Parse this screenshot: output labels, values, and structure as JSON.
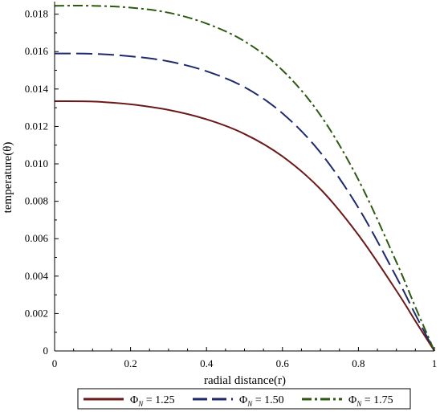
{
  "chart_data": {
    "type": "line",
    "title": "",
    "xlabel": "radial distance(r)",
    "ylabel": "temperature(θ)",
    "xlim": [
      0,
      1
    ],
    "ylim": [
      0,
      0.0185
    ],
    "x_ticks": [
      "0",
      "0.2",
      "0.4",
      "0.6",
      "0.8",
      "1"
    ],
    "y_ticks": [
      "0",
      "0.002",
      "0.004",
      "0.006",
      "0.008",
      "0.010",
      "0.012",
      "0.014",
      "0.016",
      "0.018"
    ],
    "grid": false,
    "legend_position": "bottom",
    "x": [
      0,
      0.1,
      0.2,
      0.3,
      0.4,
      0.5,
      0.6,
      0.7,
      0.8,
      0.9,
      0.95,
      1.0
    ],
    "series": [
      {
        "legend_symbol": "Φ",
        "legend_subscript": "N",
        "legend_value": " = 1.25",
        "color": "#6b1a1a",
        "dash": "solid",
        "values": [
          0.01335,
          0.01333,
          0.01318,
          0.01288,
          0.01238,
          0.0116,
          0.0104,
          0.00865,
          0.0062,
          0.00322,
          0.0016,
          0.0
        ]
      },
      {
        "legend_symbol": "Φ",
        "legend_subscript": "N",
        "legend_value": " = 1.50",
        "color": "#1f2a6b",
        "dash": "longdash",
        "values": [
          0.0159,
          0.01588,
          0.01575,
          0.01548,
          0.01495,
          0.0141,
          0.0127,
          0.0106,
          0.00765,
          0.00395,
          0.00195,
          0.0
        ]
      },
      {
        "legend_symbol": "Φ",
        "legend_subscript": "N",
        "legend_value": " = 1.75",
        "color": "#2d5a12",
        "dash": "dashdot",
        "values": [
          0.01845,
          0.01845,
          0.01835,
          0.01808,
          0.0175,
          0.01655,
          0.015,
          0.0126,
          0.00915,
          0.00475,
          0.00235,
          0.0
        ]
      }
    ]
  }
}
